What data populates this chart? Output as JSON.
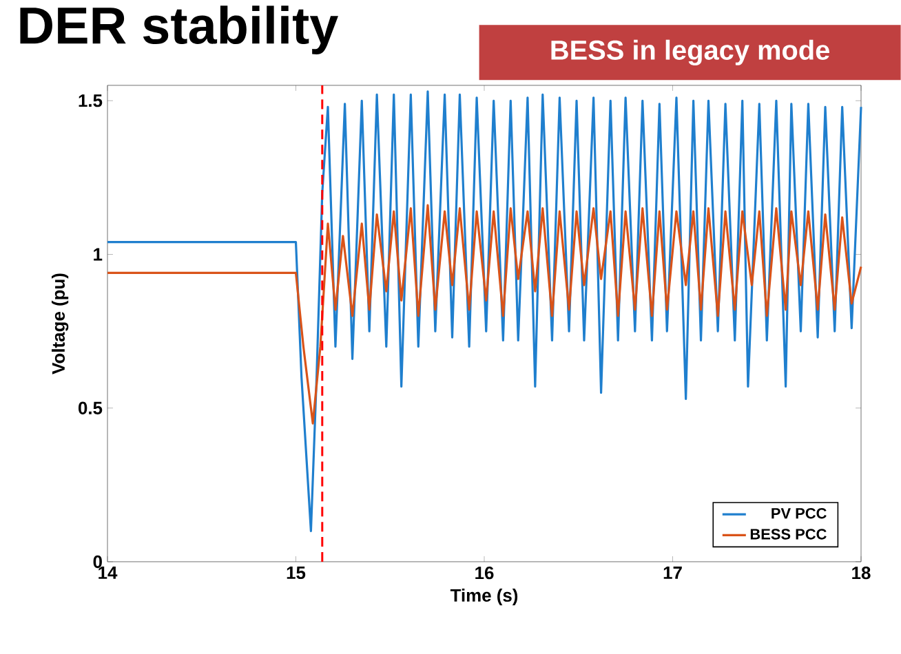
{
  "chart_data": {
    "type": "line",
    "title": "DER stability",
    "xlabel": "Time (s)",
    "ylabel": "Voltage (pu)",
    "annotations": [
      "BESS in legacy mode"
    ],
    "xlim": [
      14,
      18
    ],
    "xticks": [
      14,
      15,
      16,
      17,
      18
    ],
    "ylim": [
      0,
      1.55
    ],
    "yticks": [
      0,
      0.5,
      1,
      1.5
    ],
    "legend": "bottom right",
    "marker": "none",
    "line_style": "solid",
    "ref_lines": [
      {
        "axis": "x",
        "value": 15.14,
        "color": "#ff0000",
        "line_style": "dashed"
      }
    ],
    "series": [
      {
        "name": "PV PCC",
        "color": "#1f7fce",
        "x": [
          14,
          15.0,
          15.03,
          15.08,
          15.11,
          15.14,
          15.17,
          15.21,
          15.26,
          15.3,
          15.35,
          15.39,
          15.43,
          15.48,
          15.52,
          15.56,
          15.61,
          15.65,
          15.7,
          15.74,
          15.79,
          15.83,
          15.87,
          15.92,
          15.96,
          16.01,
          16.05,
          16.1,
          16.14,
          16.18,
          16.23,
          16.27,
          16.31,
          16.36,
          16.4,
          16.45,
          16.49,
          16.53,
          16.58,
          16.62,
          16.67,
          16.71,
          16.75,
          16.8,
          16.84,
          16.89,
          16.93,
          16.97,
          17.02,
          17.07,
          17.11,
          17.15,
          17.19,
          17.24,
          17.28,
          17.33,
          17.37,
          17.4,
          17.46,
          17.5,
          17.55,
          17.6,
          17.63,
          17.68,
          17.72,
          17.77,
          17.81,
          17.86,
          17.9,
          17.95,
          18.0
        ],
        "values": [
          1.04,
          1.04,
          0.6,
          0.1,
          0.6,
          1.2,
          1.48,
          0.7,
          1.49,
          0.66,
          1.5,
          0.75,
          1.52,
          0.7,
          1.52,
          0.57,
          1.52,
          0.7,
          1.53,
          0.75,
          1.52,
          0.73,
          1.52,
          0.7,
          1.51,
          0.75,
          1.5,
          0.72,
          1.5,
          0.72,
          1.51,
          0.57,
          1.52,
          0.72,
          1.51,
          0.75,
          1.5,
          0.72,
          1.51,
          0.55,
          1.5,
          0.72,
          1.51,
          0.75,
          1.5,
          0.72,
          1.49,
          0.75,
          1.51,
          0.53,
          1.5,
          0.72,
          1.5,
          0.75,
          1.49,
          0.72,
          1.5,
          0.57,
          1.49,
          0.72,
          1.5,
          0.57,
          1.49,
          0.75,
          1.49,
          0.73,
          1.48,
          0.75,
          1.48,
          0.76,
          1.48
        ]
      },
      {
        "name": "BESS PCC",
        "color": "#d95319",
        "x": [
          14,
          15.0,
          15.04,
          15.09,
          15.13,
          15.17,
          15.21,
          15.25,
          15.3,
          15.35,
          15.39,
          15.43,
          15.48,
          15.52,
          15.56,
          15.61,
          15.65,
          15.7,
          15.74,
          15.79,
          15.83,
          15.87,
          15.92,
          15.96,
          16.01,
          16.05,
          16.1,
          16.14,
          16.18,
          16.23,
          16.27,
          16.31,
          16.36,
          16.4,
          16.45,
          16.49,
          16.53,
          16.58,
          16.62,
          16.67,
          16.71,
          16.75,
          16.8,
          16.84,
          16.89,
          16.93,
          16.97,
          17.02,
          17.07,
          17.11,
          17.15,
          17.19,
          17.24,
          17.28,
          17.33,
          17.37,
          17.42,
          17.46,
          17.5,
          17.55,
          17.6,
          17.63,
          17.68,
          17.72,
          17.77,
          17.81,
          17.86,
          17.9,
          17.95,
          18.0
        ],
        "values": [
          0.94,
          0.94,
          0.7,
          0.45,
          0.7,
          1.1,
          0.82,
          1.06,
          0.8,
          1.1,
          0.82,
          1.13,
          0.88,
          1.14,
          0.85,
          1.15,
          0.8,
          1.16,
          0.82,
          1.14,
          0.9,
          1.15,
          0.82,
          1.14,
          0.85,
          1.14,
          0.8,
          1.15,
          0.92,
          1.14,
          0.88,
          1.15,
          0.8,
          1.14,
          0.82,
          1.14,
          0.9,
          1.15,
          0.92,
          1.14,
          0.8,
          1.14,
          0.82,
          1.15,
          0.8,
          1.14,
          0.82,
          1.14,
          0.9,
          1.14,
          0.82,
          1.15,
          0.8,
          1.14,
          0.82,
          1.14,
          0.9,
          1.14,
          0.8,
          1.15,
          0.82,
          1.14,
          0.9,
          1.14,
          0.82,
          1.13,
          0.82,
          1.12,
          0.84,
          0.96
        ]
      }
    ]
  }
}
